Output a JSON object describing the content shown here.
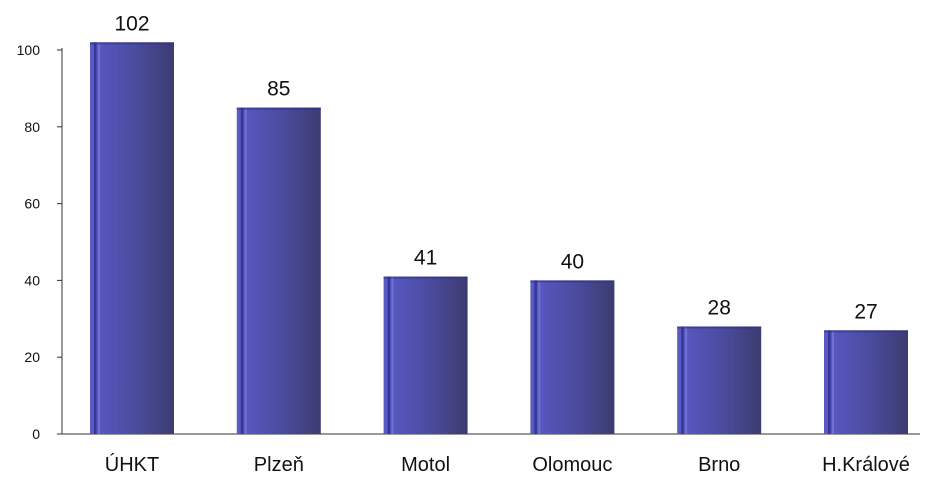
{
  "chart_data": {
    "type": "bar",
    "categories": [
      "ÚHKT",
      "Plzeň",
      "Motol",
      "Olomouc",
      "Brno",
      "H.Králové"
    ],
    "values": [
      102,
      85,
      41,
      40,
      28,
      27
    ],
    "ylim": [
      0,
      100
    ],
    "yticks": [
      0,
      20,
      40,
      60,
      80,
      100
    ],
    "grid": false,
    "legend": "none",
    "show_data_labels": true
  },
  "colors": {
    "bar_light": "#5a5ac6",
    "bar_mid": "#4b4b9e",
    "bar_dark": "#3c3c70",
    "bar_stripe": "#2f2f8e",
    "axis": "#333333"
  }
}
